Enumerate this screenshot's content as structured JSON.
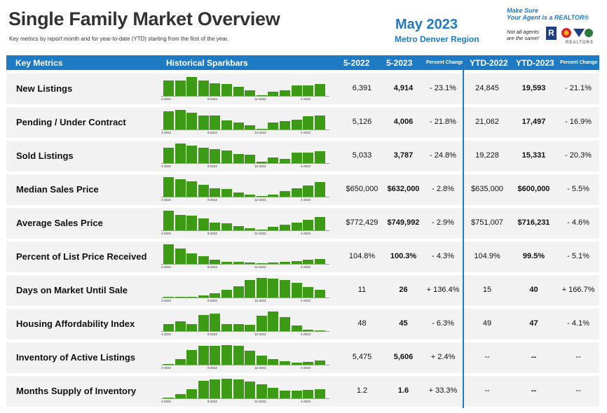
{
  "title": "Single Family Market Overview",
  "subtitle": "Key metrics by report month and for year-to-date (YTD) starting from the first of the year.",
  "period": "May 2023",
  "region": "Metro Denver Region",
  "brand": {
    "tagline_1": "Make Sure",
    "tagline_2": "Your Agent is a REALTOR®",
    "note_1": "Not all agents",
    "note_2": "are the same!",
    "logo_r": "R",
    "logo_word": "REALTORS",
    "colors": {
      "blue": "#1d3f87",
      "red": "#d4252b",
      "yellow": "#f3b41b",
      "green": "#2d7a3a"
    }
  },
  "colors": {
    "accent": "#1f7ac4",
    "bar": "#3c9a14",
    "row_bg": "#f2f2f2"
  },
  "header": {
    "key_metrics": "Key Metrics",
    "sparkbars": "Historical Sparkbars",
    "col_prev": "5-2022",
    "col_curr": "5-2023",
    "col_pct": "Percent Change",
    "col_ytd_prev": "YTD-2022",
    "col_ytd_curr": "YTD-2023",
    "col_ytd_pct": "Percent Change"
  },
  "tick_labels": [
    "4-2022",
    "8-2022",
    "12-2022",
    "4-2023"
  ],
  "rows": [
    {
      "label": "New Listings",
      "prev": "6,391",
      "curr": "4,914",
      "pct": "- 23.1%",
      "ytd_prev": "24,845",
      "ytd_curr": "19,593",
      "ytd_pct": "- 21.1%",
      "bars": [
        0.78,
        0.77,
        0.95,
        0.8,
        0.66,
        0.6,
        0.45,
        0.28,
        0.05,
        0.2,
        0.3,
        0.55,
        0.52,
        0.6
      ]
    },
    {
      "label": "Pending / Under Contract",
      "prev": "5,126",
      "curr": "4,006",
      "pct": "- 21.8%",
      "ytd_prev": "21,062",
      "ytd_curr": "17,497",
      "ytd_pct": "- 16.9%",
      "bars": [
        0.92,
        1.0,
        0.85,
        0.7,
        0.7,
        0.45,
        0.35,
        0.22,
        0.05,
        0.35,
        0.42,
        0.5,
        0.68,
        0.7
      ]
    },
    {
      "label": "Sold Listings",
      "prev": "5,033",
      "curr": "3,787",
      "pct": "- 24.8%",
      "ytd_prev": "19,228",
      "ytd_curr": "15,331",
      "ytd_pct": "- 20.3%",
      "bars": [
        0.78,
        1.0,
        0.88,
        0.8,
        0.72,
        0.65,
        0.45,
        0.42,
        0.06,
        0.3,
        0.2,
        0.52,
        0.52,
        0.6
      ]
    },
    {
      "label": "Median Sales Price",
      "prev": "$650,000",
      "curr": "$632,000",
      "pct": "- 2.8%",
      "ytd_prev": "$635,000",
      "ytd_curr": "$600,000",
      "ytd_pct": "- 5.5%",
      "bars": [
        1.0,
        0.88,
        0.8,
        0.6,
        0.42,
        0.38,
        0.22,
        0.12,
        0.05,
        0.12,
        0.28,
        0.42,
        0.58,
        0.75
      ]
    },
    {
      "label": "Average Sales Price",
      "prev": "$772,429",
      "curr": "$749,992",
      "pct": "- 2.9%",
      "ytd_prev": "$751,007",
      "ytd_curr": "$716,231",
      "ytd_pct": "- 4.6%",
      "bars": [
        1.0,
        0.8,
        0.75,
        0.6,
        0.4,
        0.35,
        0.22,
        0.1,
        0.05,
        0.18,
        0.28,
        0.38,
        0.52,
        0.68
      ]
    },
    {
      "label": "Percent of List Price Received",
      "prev": "104.8%",
      "curr": "100.3%",
      "pct": "- 4.3%",
      "ytd_prev": "104.9%",
      "ytd_curr": "99.5%",
      "ytd_pct": "- 5.1%",
      "bars": [
        1.0,
        0.8,
        0.52,
        0.38,
        0.2,
        0.12,
        0.1,
        0.08,
        0.05,
        0.06,
        0.1,
        0.15,
        0.2,
        0.26
      ]
    },
    {
      "label": "Days on Market Until Sale",
      "prev": "11",
      "curr": "26",
      "pct": "+ 136.4%",
      "ytd_prev": "15",
      "ytd_curr": "40",
      "ytd_pct": "+ 166.7%",
      "bars": [
        0.05,
        0.04,
        0.05,
        0.1,
        0.2,
        0.38,
        0.58,
        0.9,
        1.0,
        0.98,
        0.9,
        0.75,
        0.55,
        0.4
      ]
    },
    {
      "label": "Housing Affordability Index",
      "prev": "48",
      "curr": "45",
      "pct": "- 6.3%",
      "ytd_prev": "49",
      "ytd_curr": "47",
      "ytd_pct": "- 4.1%",
      "bars": [
        0.35,
        0.5,
        0.35,
        0.82,
        0.88,
        0.35,
        0.36,
        0.32,
        0.78,
        1.0,
        0.7,
        0.3,
        0.08,
        0.04
      ]
    },
    {
      "label": "Inventory of Active Listings",
      "prev": "5,475",
      "curr": "5,606",
      "pct": "+ 2.4%",
      "ytd_prev": "--",
      "ytd_curr": "--",
      "ytd_pct": "--",
      "bars": [
        0.05,
        0.28,
        0.75,
        0.95,
        0.97,
        1.0,
        0.96,
        0.7,
        0.48,
        0.3,
        0.18,
        0.12,
        0.16,
        0.22
      ]
    },
    {
      "label": "Months Supply of Inventory",
      "prev": "1.2",
      "curr": "1.6",
      "pct": "+ 33.3%",
      "ytd_prev": "--",
      "ytd_curr": "--",
      "ytd_pct": "--",
      "bars": [
        0.05,
        0.2,
        0.45,
        0.88,
        0.95,
        1.0,
        0.98,
        0.85,
        0.7,
        0.55,
        0.4,
        0.38,
        0.44,
        0.48
      ]
    }
  ]
}
